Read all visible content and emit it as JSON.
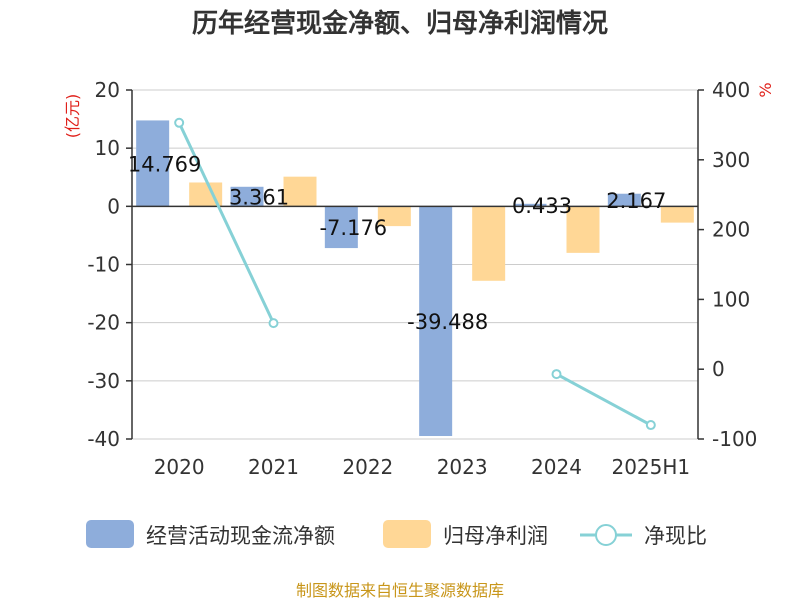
{
  "chart_data": {
    "type": "bar",
    "title": "历年经营现金净额、归母净利润情况",
    "categories": [
      "2020",
      "2021",
      "2022",
      "2023",
      "2024",
      "2025H1"
    ],
    "y_left": {
      "unit": "(亿元)",
      "min": -40,
      "max": 20,
      "ticks": [
        20,
        10,
        0,
        -10,
        -20,
        -30,
        -40
      ]
    },
    "y_right": {
      "unit": "%",
      "min": -100,
      "max": 400,
      "ticks": [
        400,
        300,
        200,
        100,
        0,
        -100
      ]
    },
    "series": [
      {
        "name": "经营活动现金流净额",
        "type": "bar",
        "axis": "left",
        "color": "#8eaddb",
        "values": [
          14.769,
          3.361,
          -7.176,
          -39.488,
          0.433,
          2.167
        ],
        "labels": [
          "14.769",
          "3.361",
          "-7.176",
          "-39.488",
          "0.433",
          "2.167"
        ]
      },
      {
        "name": "归母净利润",
        "type": "bar",
        "axis": "left",
        "color": "#ffd796",
        "values": [
          4.1,
          5.1,
          -3.4,
          -12.8,
          -8.0,
          -2.8
        ]
      },
      {
        "name": "净现比",
        "type": "line",
        "axis": "right",
        "color": "#86d1d6",
        "values": [
          353,
          66,
          null,
          null,
          -7,
          -80
        ]
      }
    ],
    "source": "制图数据来自恒生聚源数据库",
    "grid": true,
    "legend_position": "bottom"
  }
}
